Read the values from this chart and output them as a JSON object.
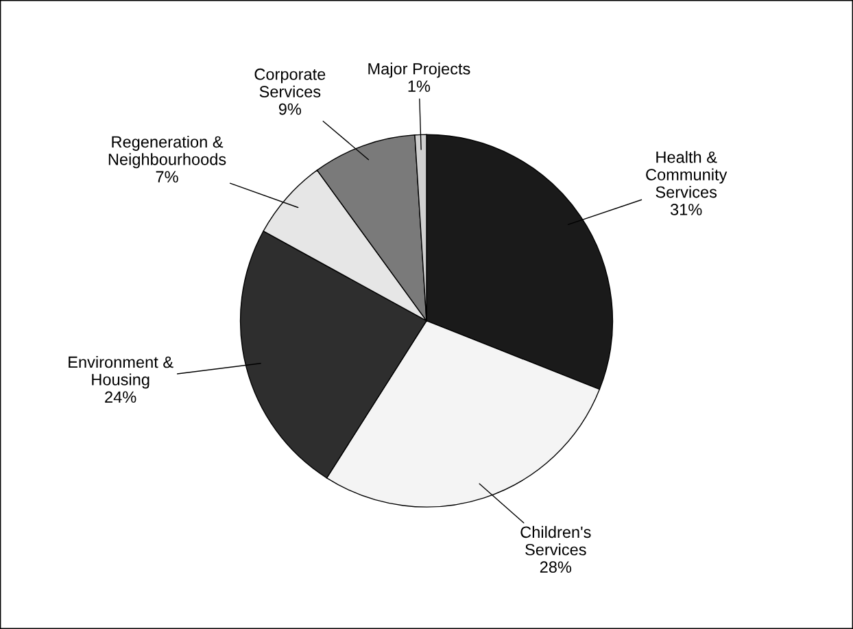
{
  "chart_data": {
    "type": "pie",
    "categories": [
      "Health &\nCommunity\nServices",
      "Children's\nServices",
      "Environment &\nHousing",
      "Regeneration &\nNeighbourhoods",
      "Corporate\nServices",
      "Major Projects"
    ],
    "values": [
      31,
      28,
      24,
      7,
      9,
      1
    ],
    "value_labels": [
      "31%",
      "28%",
      "24%",
      "7%",
      "9%",
      "1%"
    ],
    "colors": [
      "#1a1a1a",
      "#f4f4f4",
      "#2e2e2e",
      "#e6e6e6",
      "#7a7a7a",
      "#d0d0d0"
    ]
  }
}
